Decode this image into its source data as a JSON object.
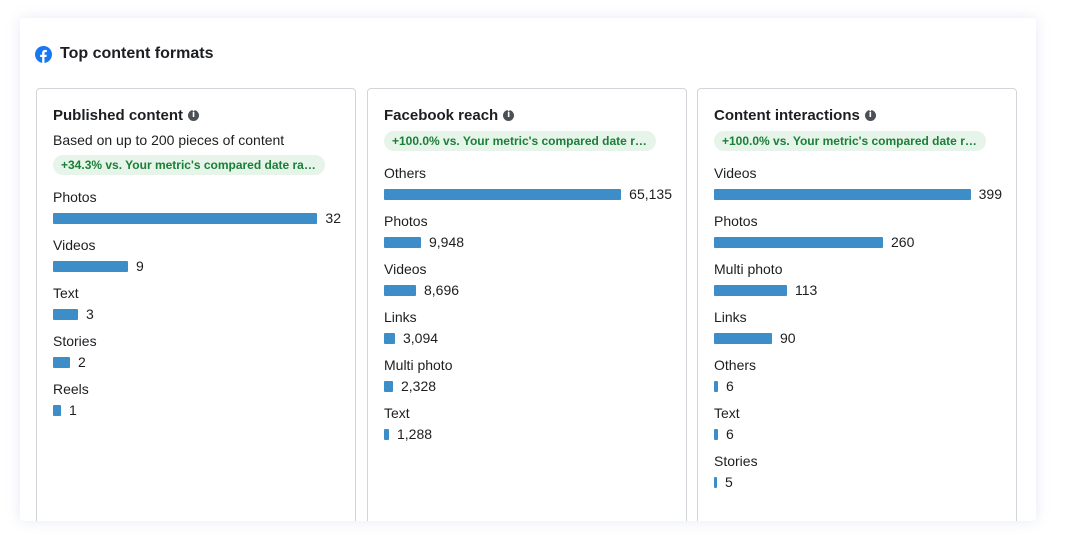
{
  "header": {
    "title": "Top content formats",
    "icon": "facebook-icon"
  },
  "colors": {
    "bar": "#3c8dc8",
    "badge_bg": "#e6f4e9",
    "badge_text": "#1a7f37"
  },
  "cards": [
    {
      "title": "Published content",
      "subtitle": "Based on up to 200 pieces of content",
      "badge": "+34.3% vs. Your metric's compared date range ...",
      "max": 32,
      "rows": [
        {
          "label": "Photos",
          "value": 32,
          "display": "32"
        },
        {
          "label": "Videos",
          "value": 9,
          "display": "9"
        },
        {
          "label": "Text",
          "value": 3,
          "display": "3"
        },
        {
          "label": "Stories",
          "value": 2,
          "display": "2"
        },
        {
          "label": "Reels",
          "value": 1,
          "display": "1"
        }
      ]
    },
    {
      "title": "Facebook reach",
      "subtitle": "",
      "badge": "+100.0% vs. Your metric's compared date rang...",
      "max": 65135,
      "rows": [
        {
          "label": "Others",
          "value": 65135,
          "display": "65,135"
        },
        {
          "label": "Photos",
          "value": 9948,
          "display": "9,948"
        },
        {
          "label": "Videos",
          "value": 8696,
          "display": "8,696"
        },
        {
          "label": "Links",
          "value": 3094,
          "display": "3,094"
        },
        {
          "label": "Multi photo",
          "value": 2328,
          "display": "2,328"
        },
        {
          "label": "Text",
          "value": 1288,
          "display": "1,288"
        }
      ]
    },
    {
      "title": "Content interactions",
      "subtitle": "",
      "badge": "+100.0% vs. Your metric's compared date rang...",
      "max": 399,
      "rows": [
        {
          "label": "Videos",
          "value": 399,
          "display": "399"
        },
        {
          "label": "Photos",
          "value": 260,
          "display": "260"
        },
        {
          "label": "Multi photo",
          "value": 113,
          "display": "113"
        },
        {
          "label": "Links",
          "value": 90,
          "display": "90"
        },
        {
          "label": "Others",
          "value": 6,
          "display": "6"
        },
        {
          "label": "Text",
          "value": 6,
          "display": "6"
        },
        {
          "label": "Stories",
          "value": 5,
          "display": "5"
        }
      ]
    }
  ]
}
